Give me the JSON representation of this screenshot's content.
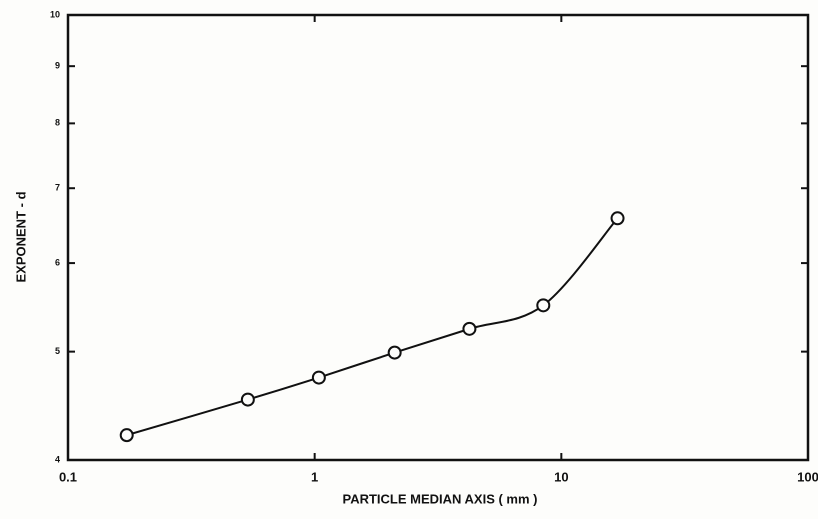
{
  "chart_data": {
    "type": "line",
    "xlabel": "PARTICLE MEDIAN AXIS ( mm )",
    "ylabel": "EXPONENT - d",
    "x": [
      0.173,
      0.536,
      1.04,
      2.11,
      4.24,
      8.45,
      16.9
    ],
    "values": [
      4.21,
      4.53,
      4.74,
      4.99,
      5.24,
      5.5,
      6.58
    ],
    "color": "#111111",
    "marker": "open-circle",
    "xscale": "log",
    "yscale": "log",
    "xlim": [
      0.1,
      100
    ],
    "xticks": [
      0.1,
      1,
      10,
      100
    ],
    "ylim": [
      4,
      10
    ],
    "yticks": [
      4,
      5,
      6,
      7,
      8,
      9,
      10
    ],
    "grid": false
  }
}
